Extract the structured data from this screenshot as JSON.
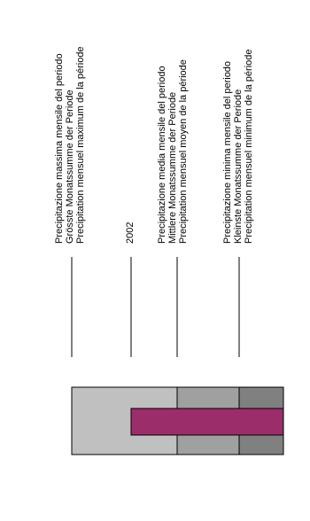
{
  "chart_data": {
    "type": "legend",
    "orientation": "rotated-90",
    "entries": [
      {
        "key": "max",
        "lines": [
          "Precipitazione massima mensile del periodo",
          "Grösste Monatssumme der Periode",
          "Precipitation mensuel maximum de la période"
        ],
        "swatch_color": "#c0c0c0"
      },
      {
        "key": "year",
        "lines": [
          "2002"
        ],
        "swatch_color": "#9b2d6a"
      },
      {
        "key": "mean",
        "lines": [
          "Precipitazione media mensile del periodo",
          "Mittlere Monatssumme der Periode",
          "Precipitation mensuel moyen de la période"
        ],
        "swatch_color": "#a0a0a0"
      },
      {
        "key": "min",
        "lines": [
          "Precipitazione minima mensile del periodo",
          "Kleinste Monatssumme der Periode",
          "Precipitation mensuel minimum de la période"
        ],
        "swatch_color": "#808080"
      }
    ],
    "colors": {
      "outline": "#000000",
      "leader_line": "#000000"
    }
  }
}
